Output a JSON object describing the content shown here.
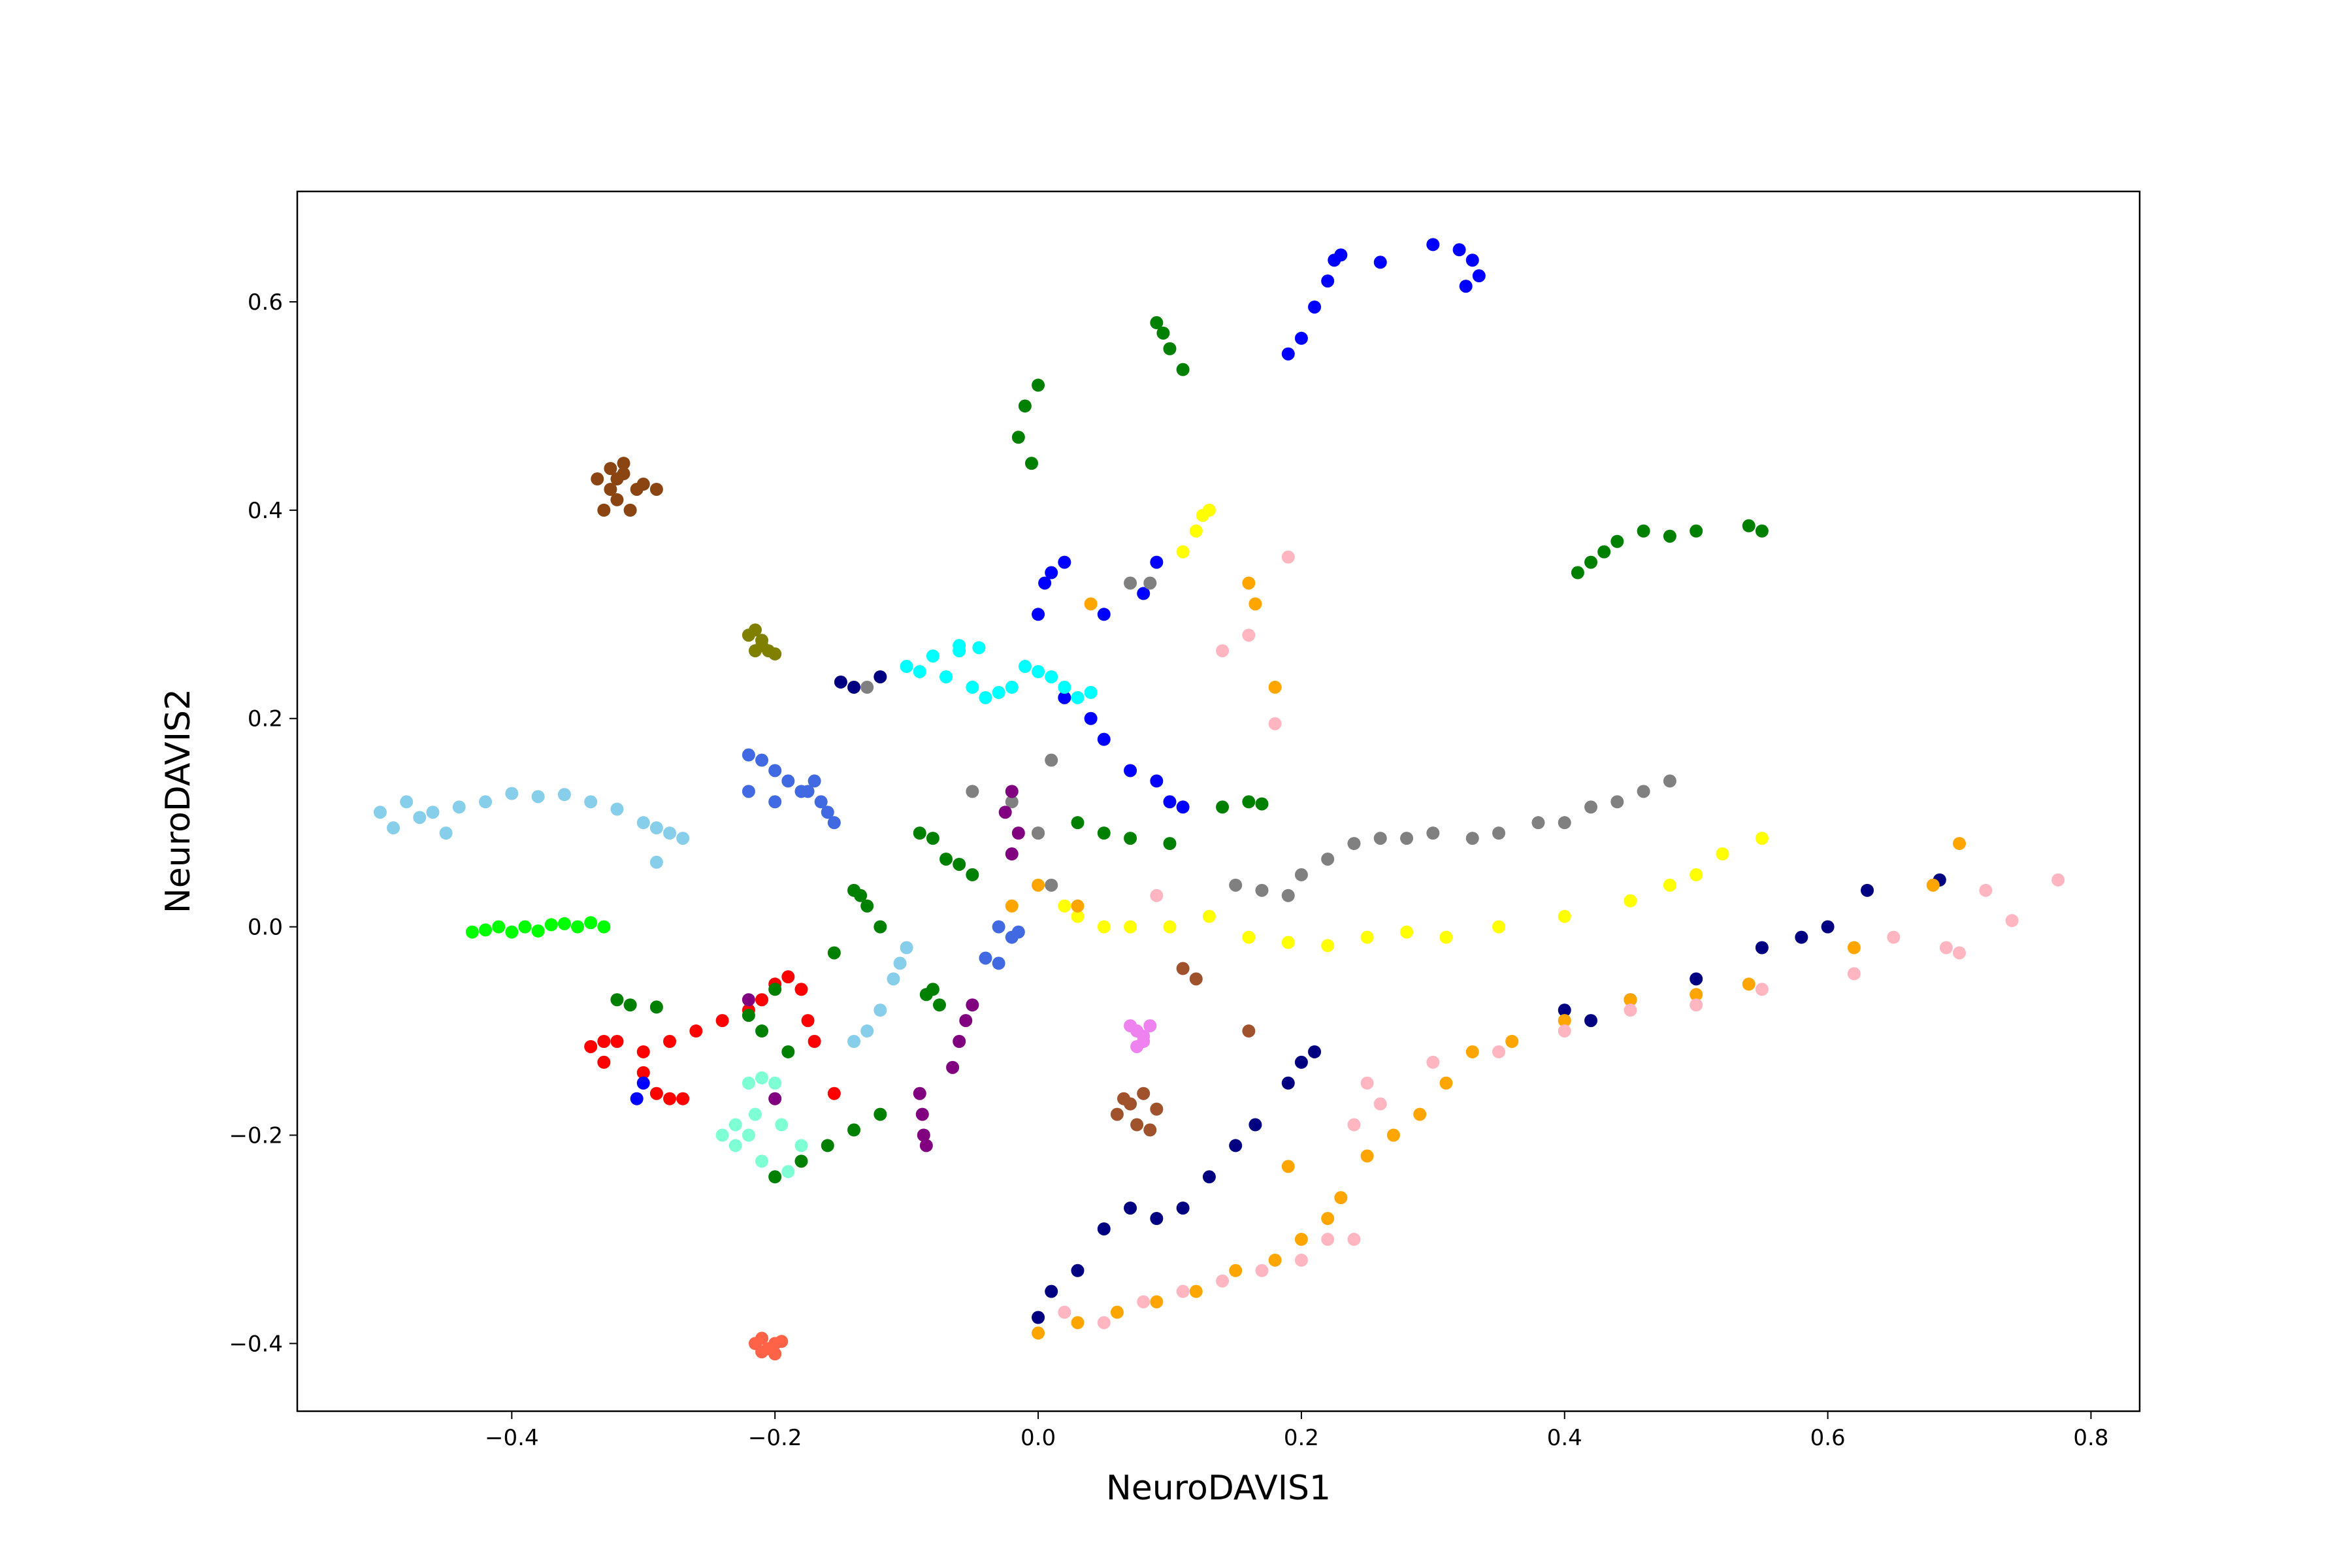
{
  "chart_data": {
    "type": "scatter",
    "x_label": "NeuroDAVIS1",
    "y_label": "NeuroDAVIS2",
    "xlim": [
      -0.563,
      0.837
    ],
    "ylim": [
      -0.465,
      0.706
    ],
    "xticks": [
      {
        "value": -0.4,
        "label": "−0.4"
      },
      {
        "value": -0.2,
        "label": "−0.2"
      },
      {
        "value": 0,
        "label": "0.0"
      },
      0.2,
      0.4,
      0.6,
      0.8
    ],
    "yticks": [
      {
        "value": -0.4,
        "label": "−0.4"
      },
      {
        "value": -0.2,
        "label": "−0.2"
      },
      {
        "value": 0,
        "label": "0.0"
      },
      0.2,
      0.4,
      0.6
    ],
    "series": [
      {
        "color": "#8b4513",
        "x": [
          -0.335,
          -0.325,
          -0.315,
          -0.305,
          -0.32,
          -0.33,
          -0.31,
          -0.3,
          -0.325,
          -0.315,
          -0.29,
          -0.32
        ],
        "y": [
          0.43,
          0.44,
          0.435,
          0.42,
          0.41,
          0.4,
          0.4,
          0.425,
          0.42,
          0.445,
          0.42,
          0.43
        ]
      },
      {
        "color": "#808000",
        "x": [
          -0.22,
          -0.215,
          -0.21,
          -0.205,
          -0.2,
          -0.215,
          -0.21
        ],
        "y": [
          0.28,
          0.285,
          0.27,
          0.265,
          0.262,
          0.265,
          0.275
        ]
      },
      {
        "color": "#87ceeb",
        "x": [
          -0.5,
          -0.49,
          -0.48,
          -0.47,
          -0.46,
          -0.45,
          -0.44,
          -0.42,
          -0.4,
          -0.38,
          -0.36,
          -0.34,
          -0.32,
          -0.3,
          -0.29,
          -0.28,
          -0.27,
          -0.29,
          -0.1,
          -0.11,
          -0.12,
          -0.13,
          -0.14,
          -0.105
        ],
        "y": [
          0.11,
          0.095,
          0.12,
          0.105,
          0.11,
          0.09,
          0.115,
          0.12,
          0.128,
          0.125,
          0.127,
          0.12,
          0.113,
          0.1,
          0.095,
          0.09,
          0.085,
          0.062,
          -0.02,
          -0.05,
          -0.08,
          -0.1,
          -0.11,
          -0.035
        ]
      },
      {
        "color": "#00ff00",
        "x": [
          -0.43,
          -0.42,
          -0.41,
          -0.4,
          -0.39,
          -0.38,
          -0.37,
          -0.36,
          -0.35,
          -0.34,
          -0.33
        ],
        "y": [
          -0.005,
          -0.003,
          0,
          -0.005,
          0,
          -0.004,
          0.002,
          0.003,
          0,
          0.004,
          0
        ]
      },
      {
        "color": "#ff0000",
        "x": [
          -0.34,
          -0.33,
          -0.32,
          -0.3,
          -0.28,
          -0.26,
          -0.24,
          -0.22,
          -0.21,
          -0.2,
          -0.19,
          -0.18,
          -0.175,
          -0.17,
          -0.3,
          -0.29,
          -0.28,
          -0.27,
          -0.155,
          -0.33
        ],
        "y": [
          -0.115,
          -0.11,
          -0.11,
          -0.12,
          -0.11,
          -0.1,
          -0.09,
          -0.08,
          -0.07,
          -0.055,
          -0.048,
          -0.06,
          -0.09,
          -0.11,
          -0.14,
          -0.16,
          -0.165,
          -0.165,
          -0.16,
          -0.13
        ]
      },
      {
        "color": "#7fffd4",
        "x": [
          -0.24,
          -0.23,
          -0.22,
          -0.21,
          -0.2,
          -0.19,
          -0.18,
          -0.22,
          -0.21,
          -0.2,
          -0.195,
          -0.23,
          -0.215
        ],
        "y": [
          -0.2,
          -0.19,
          -0.2,
          -0.225,
          -0.24,
          -0.235,
          -0.21,
          -0.15,
          -0.145,
          -0.15,
          -0.19,
          -0.21,
          -0.18
        ]
      },
      {
        "color": "#ff6347",
        "x": [
          -0.215,
          -0.21,
          -0.205,
          -0.2,
          -0.195,
          -0.21,
          -0.2
        ],
        "y": [
          -0.4,
          -0.395,
          -0.405,
          -0.4,
          -0.398,
          -0.408,
          -0.41
        ]
      },
      {
        "color": "#4169e1",
        "x": [
          -0.22,
          -0.21,
          -0.2,
          -0.19,
          -0.18,
          -0.17,
          -0.165,
          -0.16,
          -0.155,
          -0.22,
          -0.2,
          -0.175,
          -0.04,
          -0.03,
          -0.02,
          -0.03,
          -0.015
        ],
        "y": [
          0.165,
          0.16,
          0.15,
          0.14,
          0.13,
          0.14,
          0.12,
          0.11,
          0.1,
          0.13,
          0.12,
          0.13,
          -0.03,
          -0.035,
          -0.01,
          0,
          -0.005
        ]
      },
      {
        "color": "#000080",
        "x": [
          -0.15,
          -0.14,
          -0.12,
          0.0,
          0.01,
          0.03,
          0.05,
          0.07,
          0.09,
          0.11,
          0.13,
          0.15,
          0.165,
          0.19,
          0.2,
          0.21,
          0.4,
          0.42,
          0.45,
          0.5,
          0.55,
          0.58,
          0.6,
          0.63,
          0.685
        ],
        "y": [
          0.235,
          0.23,
          0.24,
          -0.375,
          -0.35,
          -0.33,
          -0.29,
          -0.27,
          -0.28,
          -0.27,
          -0.24,
          -0.21,
          -0.19,
          -0.15,
          -0.13,
          -0.12,
          -0.08,
          -0.09,
          -0.07,
          -0.05,
          -0.02,
          -0.01,
          0.0,
          0.035,
          0.045
        ]
      },
      {
        "color": "#0000ff",
        "x": [
          0.19,
          0.2,
          0.21,
          0.22,
          0.225,
          0.23,
          0.26,
          0.3,
          0.32,
          0.33,
          0.335,
          0.325,
          0.0,
          0.005,
          0.01,
          0.02,
          0.05,
          0.08,
          0.09,
          0.02,
          0.04,
          0.05,
          0.07,
          0.09,
          0.1,
          0.11,
          -0.3,
          -0.305
        ],
        "y": [
          0.55,
          0.565,
          0.595,
          0.62,
          0.64,
          0.645,
          0.638,
          0.655,
          0.65,
          0.64,
          0.625,
          0.615,
          0.3,
          0.33,
          0.34,
          0.35,
          0.3,
          0.32,
          0.35,
          0.22,
          0.2,
          0.18,
          0.15,
          0.14,
          0.12,
          0.115,
          -0.15,
          -0.165
        ]
      },
      {
        "color": "#008000",
        "x": [
          0.0,
          -0.01,
          -0.015,
          -0.005,
          0.09,
          0.095,
          0.1,
          0.11,
          0.41,
          0.42,
          0.43,
          0.44,
          0.46,
          0.48,
          0.5,
          0.54,
          0.55,
          -0.09,
          -0.08,
          -0.07,
          -0.06,
          -0.05,
          0.03,
          0.05,
          0.07,
          0.1,
          0.14,
          0.16,
          0.17,
          -0.14,
          -0.135,
          -0.13,
          -0.12,
          -0.08,
          -0.085,
          -0.075,
          -0.32,
          -0.31,
          -0.29,
          -0.2,
          -0.18,
          -0.16,
          -0.14,
          -0.12,
          -0.22,
          -0.21,
          -0.19,
          -0.2,
          -0.155
        ],
        "y": [
          0.52,
          0.5,
          0.47,
          0.445,
          0.58,
          0.57,
          0.555,
          0.535,
          0.34,
          0.35,
          0.36,
          0.37,
          0.38,
          0.375,
          0.38,
          0.385,
          0.38,
          0.09,
          0.085,
          0.065,
          0.06,
          0.05,
          0.1,
          0.09,
          0.085,
          0.08,
          0.115,
          0.12,
          0.118,
          0.035,
          0.03,
          0.02,
          0.0,
          -0.06,
          -0.065,
          -0.075,
          -0.07,
          -0.075,
          -0.077,
          -0.24,
          -0.225,
          -0.21,
          -0.195,
          -0.18,
          -0.085,
          -0.1,
          -0.12,
          -0.06,
          -0.025
        ]
      },
      {
        "color": "#00ffff",
        "x": [
          -0.1,
          -0.09,
          -0.08,
          -0.07,
          -0.06,
          -0.05,
          -0.04,
          -0.03,
          -0.02,
          -0.01,
          0.0,
          0.01,
          0.02,
          0.03,
          0.04,
          -0.06,
          -0.045
        ],
        "y": [
          0.25,
          0.245,
          0.26,
          0.24,
          0.265,
          0.23,
          0.22,
          0.225,
          0.23,
          0.25,
          0.245,
          0.24,
          0.23,
          0.22,
          0.225,
          0.27,
          0.268
        ]
      },
      {
        "color": "#808080",
        "x": [
          0.0,
          0.01,
          -0.05,
          -0.02,
          0.0,
          0.15,
          0.17,
          0.19,
          0.2,
          0.22,
          0.24,
          0.26,
          0.28,
          0.3,
          0.33,
          0.35,
          0.38,
          0.4,
          0.42,
          0.44,
          0.46,
          0.48,
          0.07,
          0.085,
          0.01,
          -0.13
        ],
        "y": [
          0.09,
          0.16,
          0.13,
          0.12,
          0.09,
          0.04,
          0.035,
          0.03,
          0.05,
          0.065,
          0.08,
          0.085,
          0.085,
          0.09,
          0.085,
          0.09,
          0.1,
          0.1,
          0.115,
          0.12,
          0.13,
          0.14,
          0.33,
          0.33,
          0.04,
          0.23
        ]
      },
      {
        "color": "#ffff00",
        "x": [
          0.02,
          0.03,
          0.05,
          0.07,
          0.1,
          0.13,
          0.16,
          0.19,
          0.22,
          0.25,
          0.28,
          0.31,
          0.35,
          0.4,
          0.45,
          0.48,
          0.5,
          0.52,
          0.55,
          0.12,
          0.125,
          0.13,
          0.11
        ],
        "y": [
          0.02,
          0.01,
          0.0,
          0.0,
          0.0,
          0.01,
          -0.01,
          -0.015,
          -0.018,
          -0.01,
          -0.005,
          -0.01,
          0.0,
          0.01,
          0.025,
          0.04,
          0.05,
          0.07,
          0.085,
          0.38,
          0.395,
          0.4,
          0.36
        ]
      },
      {
        "color": "#ffa500",
        "x": [
          0.0,
          0.03,
          0.06,
          0.09,
          0.12,
          0.15,
          0.18,
          0.2,
          0.22,
          0.23,
          0.25,
          0.27,
          0.29,
          0.31,
          0.33,
          0.36,
          0.4,
          0.45,
          0.5,
          0.54,
          0.62,
          0.68,
          0.7,
          0.04,
          0.16,
          0.165,
          0.18,
          0.19,
          -0.02,
          0.0,
          0.03
        ],
        "y": [
          -0.39,
          -0.38,
          -0.37,
          -0.36,
          -0.35,
          -0.33,
          -0.32,
          -0.3,
          -0.28,
          -0.26,
          -0.22,
          -0.2,
          -0.18,
          -0.15,
          -0.12,
          -0.11,
          -0.09,
          -0.07,
          -0.065,
          -0.055,
          -0.02,
          0.04,
          0.08,
          0.31,
          0.33,
          0.31,
          0.23,
          -0.23,
          0.02,
          0.04,
          0.02
        ]
      },
      {
        "color": "#ffb6c1",
        "x": [
          0.02,
          0.05,
          0.08,
          0.11,
          0.14,
          0.17,
          0.2,
          0.22,
          0.24,
          0.24,
          0.25,
          0.26,
          0.3,
          0.35,
          0.4,
          0.45,
          0.5,
          0.55,
          0.62,
          0.65,
          0.69,
          0.7,
          0.72,
          0.74,
          0.775,
          0.14,
          0.16,
          0.19,
          0.18,
          0.09
        ],
        "y": [
          -0.37,
          -0.38,
          -0.36,
          -0.35,
          -0.34,
          -0.33,
          -0.32,
          -0.3,
          -0.3,
          -0.19,
          -0.15,
          -0.17,
          -0.13,
          -0.12,
          -0.1,
          -0.08,
          -0.075,
          -0.06,
          -0.045,
          -0.01,
          -0.02,
          -0.025,
          0.035,
          0.006,
          0.045,
          0.265,
          0.28,
          0.355,
          0.195,
          0.03
        ]
      },
      {
        "color": "#800080",
        "x": [
          -0.02,
          -0.025,
          -0.015,
          -0.02,
          -0.05,
          -0.055,
          -0.06,
          -0.065,
          -0.09,
          -0.088,
          -0.087,
          -0.085,
          -0.22,
          -0.2
        ],
        "y": [
          0.13,
          0.11,
          0.09,
          0.07,
          -0.075,
          -0.09,
          -0.11,
          -0.135,
          -0.16,
          -0.18,
          -0.2,
          -0.21,
          -0.07,
          -0.165
        ]
      },
      {
        "color": "#ee82ee",
        "x": [
          0.07,
          0.075,
          0.08,
          0.085,
          0.075,
          0.08
        ],
        "y": [
          -0.095,
          -0.1,
          -0.105,
          -0.095,
          -0.115,
          -0.11
        ]
      },
      {
        "color": "#a0522d",
        "x": [
          0.07,
          0.08,
          0.09,
          0.06,
          0.075,
          0.085,
          0.065,
          0.11,
          0.12,
          0.16
        ],
        "y": [
          -0.17,
          -0.16,
          -0.175,
          -0.18,
          -0.19,
          -0.195,
          -0.165,
          -0.04,
          -0.05,
          -0.1
        ]
      }
    ]
  }
}
